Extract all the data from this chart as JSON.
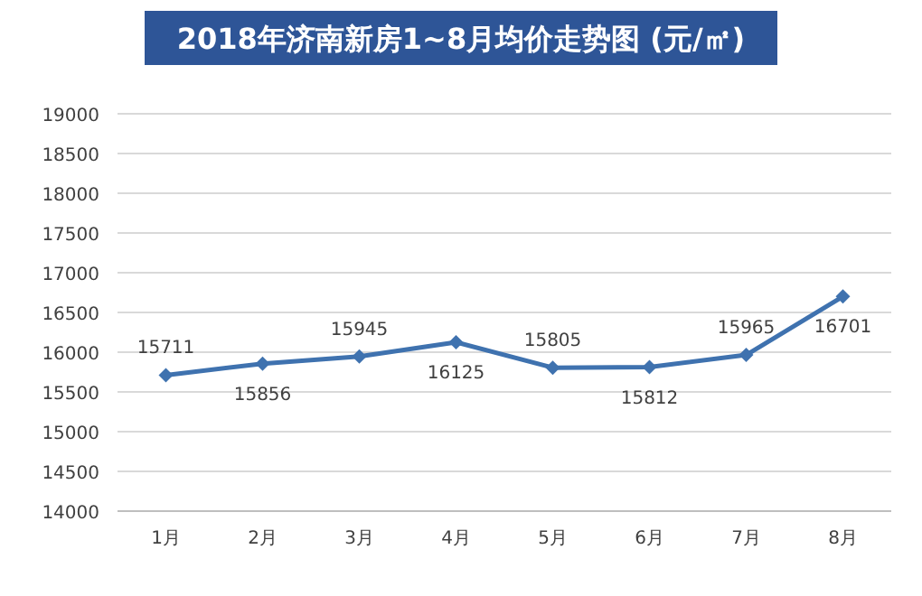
{
  "chart_data": {
    "type": "line",
    "title": "2018年济南新房1~8月均价走势图 (元/㎡)",
    "categories": [
      "1月",
      "2月",
      "3月",
      "4月",
      "5月",
      "6月",
      "7月",
      "8月"
    ],
    "series": [
      {
        "color": "#3f72af",
        "values": [
          15711,
          15856,
          15945,
          16125,
          15805,
          15812,
          15965,
          16701
        ]
      }
    ],
    "ylim": [
      14000,
      19000
    ],
    "yticks": [
      14000,
      14500,
      15000,
      15500,
      16000,
      16500,
      17000,
      17500,
      18000,
      18500,
      19000
    ],
    "grid": "y",
    "marker": "diamond",
    "line_style": "solid",
    "data_labels": true
  }
}
